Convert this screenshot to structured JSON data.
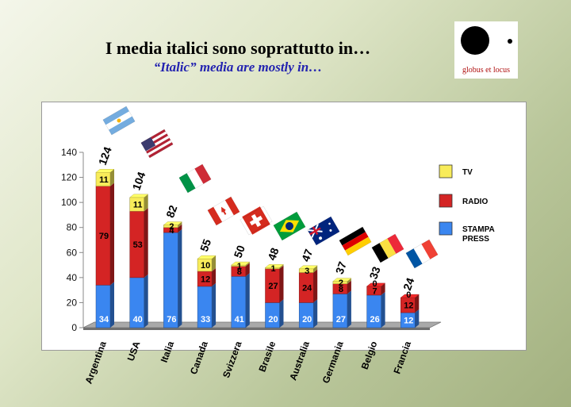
{
  "page": {
    "title": "I media italici sono soprattutto in…",
    "subtitle": "“Italic” media are mostly in…"
  },
  "logo": {
    "text": "globus et locus"
  },
  "chart_data": {
    "type": "bar",
    "stacked": true,
    "categories": [
      "Argentina",
      "USA",
      "Italia",
      "Canada",
      "Svizzera",
      "Brasile",
      "Australia",
      "Germania",
      "Belgio",
      "Francia"
    ],
    "series": [
      {
        "name": "STAMPA PRESS",
        "values": [
          34,
          40,
          76,
          33,
          41,
          20,
          20,
          27,
          26,
          12
        ],
        "color": "#3a86f0"
      },
      {
        "name": "RADIO",
        "values": [
          79,
          53,
          4,
          12,
          8,
          27,
          24,
          8,
          7,
          12
        ],
        "color": "#d42424"
      },
      {
        "name": "TV",
        "values": [
          11,
          11,
          2,
          10,
          1,
          1,
          3,
          2,
          0,
          0
        ],
        "color": "#f8ec5a"
      }
    ],
    "totals": [
      124,
      104,
      82,
      55,
      50,
      48,
      47,
      37,
      33,
      24
    ],
    "legend": [
      {
        "label": "TV",
        "color": "#f8ec5a"
      },
      {
        "label": "RADIO",
        "color": "#d42424"
      },
      {
        "label": "STAMPA",
        "label2": "PRESS",
        "color": "#3a86f0"
      }
    ],
    "yticks": [
      0,
      20,
      40,
      60,
      80,
      100,
      120,
      140
    ],
    "ylim": [
      0,
      140
    ],
    "grid": false,
    "legend_position": "right",
    "flags": [
      "argentina-flag",
      "usa-flag",
      "italy-flag",
      "canada-flag",
      "switzerland-flag",
      "brazil-flag",
      "australia-flag",
      "germany-flag",
      "belgium-flag",
      "france-flag"
    ]
  }
}
